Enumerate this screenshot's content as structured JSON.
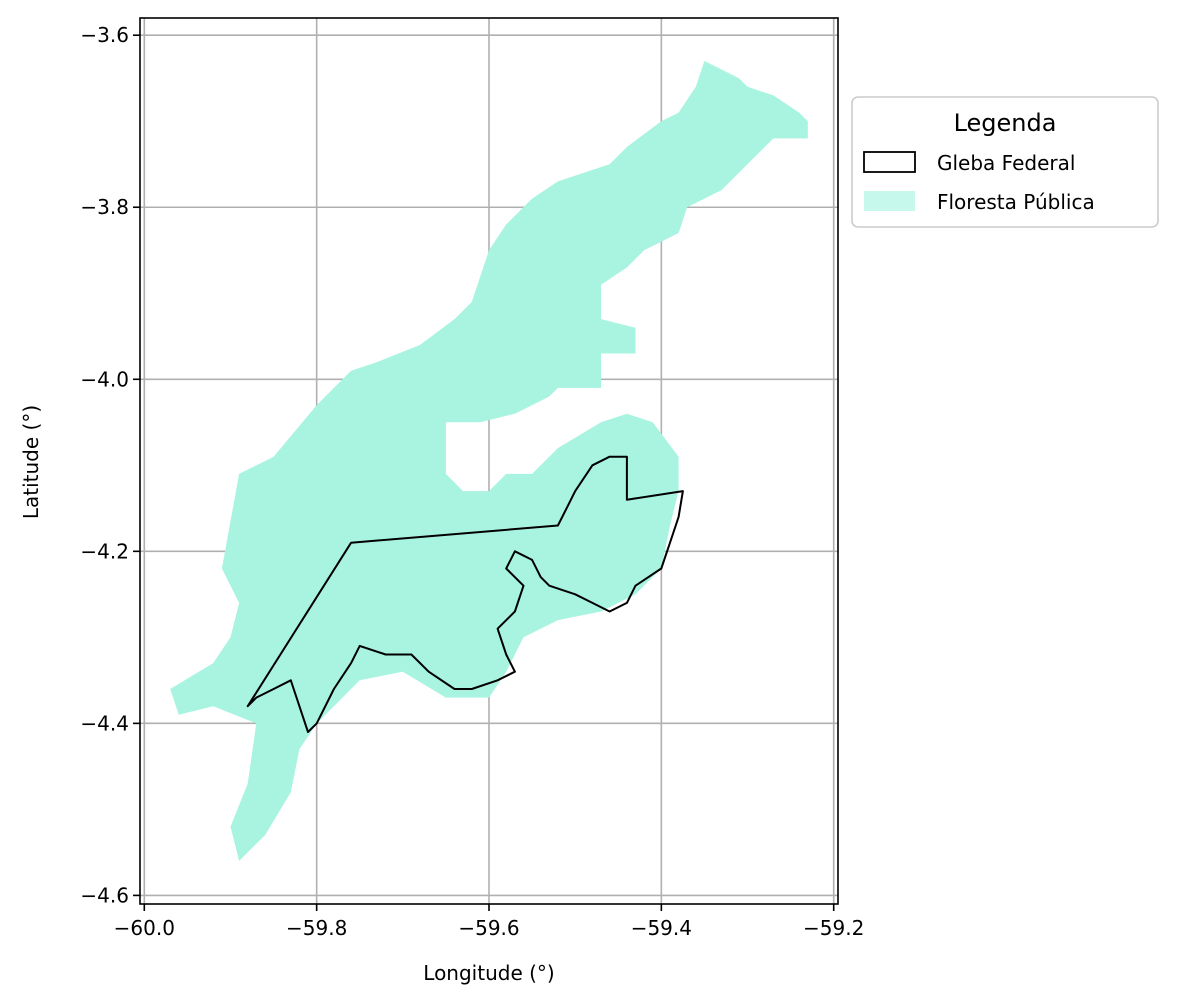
{
  "chart_data": {
    "type": "map",
    "xlabel": "Longitude (°)",
    "ylabel": "Latitude (°)",
    "xlim": [
      -60.005,
      -59.195
    ],
    "ylim": [
      -4.61,
      -3.58
    ],
    "xticks": [
      -60.0,
      -59.8,
      -59.6,
      -59.4,
      -59.2
    ],
    "xtick_labels": [
      "−60.0",
      "−59.8",
      "−59.6",
      "−59.4",
      "−59.2"
    ],
    "yticks": [
      -3.6,
      -3.8,
      -4.0,
      -4.2,
      -4.4,
      -4.6
    ],
    "ytick_labels": [
      "−3.6",
      "−3.8",
      "−4.0",
      "−4.2",
      "−4.4",
      "−4.6"
    ],
    "grid": true,
    "legend": {
      "title": "Legenda",
      "location": "outside-right-top",
      "entries": [
        {
          "label": "Gleba Federal",
          "style": "outline",
          "color": "#000000"
        },
        {
          "label": "Floresta Pública",
          "style": "fill",
          "color": "#a8f4e0"
        }
      ]
    },
    "floresta_publica": {
      "color": "#a8f4e0",
      "polygons": [
        [
          [
            -59.35,
            -3.63
          ],
          [
            -59.33,
            -3.64
          ],
          [
            -59.31,
            -3.65
          ],
          [
            -59.3,
            -3.66
          ],
          [
            -59.27,
            -3.67
          ],
          [
            -59.24,
            -3.69
          ],
          [
            -59.23,
            -3.7
          ],
          [
            -59.23,
            -3.72
          ],
          [
            -59.27,
            -3.72
          ],
          [
            -59.31,
            -3.76
          ],
          [
            -59.33,
            -3.78
          ],
          [
            -59.37,
            -3.8
          ],
          [
            -59.38,
            -3.83
          ],
          [
            -59.42,
            -3.85
          ],
          [
            -59.44,
            -3.87
          ],
          [
            -59.47,
            -3.89
          ],
          [
            -59.47,
            -3.93
          ],
          [
            -59.43,
            -3.94
          ],
          [
            -59.43,
            -3.97
          ],
          [
            -59.47,
            -3.97
          ],
          [
            -59.47,
            -4.01
          ],
          [
            -59.52,
            -4.01
          ],
          [
            -59.53,
            -4.02
          ],
          [
            -59.57,
            -4.04
          ],
          [
            -59.61,
            -4.05
          ],
          [
            -59.65,
            -4.05
          ],
          [
            -59.65,
            -4.11
          ],
          [
            -59.63,
            -4.13
          ],
          [
            -59.6,
            -4.13
          ],
          [
            -59.58,
            -4.11
          ],
          [
            -59.55,
            -4.11
          ],
          [
            -59.52,
            -4.08
          ],
          [
            -59.47,
            -4.05
          ],
          [
            -59.44,
            -4.04
          ],
          [
            -59.41,
            -4.05
          ],
          [
            -59.38,
            -4.09
          ],
          [
            -59.38,
            -4.13
          ],
          [
            -59.39,
            -4.17
          ],
          [
            -59.4,
            -4.22
          ],
          [
            -59.43,
            -4.25
          ],
          [
            -59.47,
            -4.27
          ],
          [
            -59.52,
            -4.28
          ],
          [
            -59.56,
            -4.3
          ],
          [
            -59.58,
            -4.34
          ],
          [
            -59.6,
            -4.37
          ],
          [
            -59.65,
            -4.37
          ],
          [
            -59.7,
            -4.34
          ],
          [
            -59.75,
            -4.35
          ],
          [
            -59.78,
            -4.38
          ],
          [
            -59.8,
            -4.4
          ],
          [
            -59.82,
            -4.43
          ],
          [
            -59.83,
            -4.48
          ],
          [
            -59.86,
            -4.53
          ],
          [
            -59.89,
            -4.56
          ],
          [
            -59.9,
            -4.52
          ],
          [
            -59.88,
            -4.47
          ],
          [
            -59.87,
            -4.4
          ],
          [
            -59.92,
            -4.38
          ],
          [
            -59.96,
            -4.39
          ],
          [
            -59.97,
            -4.36
          ],
          [
            -59.92,
            -4.33
          ],
          [
            -59.9,
            -4.3
          ],
          [
            -59.89,
            -4.26
          ],
          [
            -59.91,
            -4.22
          ],
          [
            -59.89,
            -4.11
          ],
          [
            -59.85,
            -4.09
          ],
          [
            -59.8,
            -4.03
          ],
          [
            -59.76,
            -3.99
          ],
          [
            -59.73,
            -3.98
          ],
          [
            -59.68,
            -3.96
          ],
          [
            -59.64,
            -3.93
          ],
          [
            -59.62,
            -3.91
          ],
          [
            -59.6,
            -3.85
          ],
          [
            -59.58,
            -3.82
          ],
          [
            -59.55,
            -3.79
          ],
          [
            -59.52,
            -3.77
          ],
          [
            -59.46,
            -3.75
          ],
          [
            -59.44,
            -3.73
          ],
          [
            -59.4,
            -3.7
          ],
          [
            -59.38,
            -3.69
          ],
          [
            -59.36,
            -3.66
          ]
        ]
      ]
    },
    "gleba_federal": {
      "color": "#000000",
      "polygons": [
        [
          [
            -59.76,
            -4.19
          ],
          [
            -59.52,
            -4.17
          ],
          [
            -59.51,
            -4.15
          ],
          [
            -59.5,
            -4.13
          ],
          [
            -59.48,
            -4.1
          ],
          [
            -59.46,
            -4.09
          ],
          [
            -59.44,
            -4.09
          ],
          [
            -59.44,
            -4.14
          ],
          [
            -59.375,
            -4.13
          ],
          [
            -59.38,
            -4.16
          ],
          [
            -59.39,
            -4.19
          ],
          [
            -59.4,
            -4.22
          ],
          [
            -59.43,
            -4.24
          ],
          [
            -59.44,
            -4.26
          ],
          [
            -59.46,
            -4.27
          ],
          [
            -59.48,
            -4.26
          ],
          [
            -59.5,
            -4.25
          ],
          [
            -59.53,
            -4.24
          ],
          [
            -59.54,
            -4.23
          ],
          [
            -59.55,
            -4.21
          ],
          [
            -59.57,
            -4.2
          ],
          [
            -59.58,
            -4.22
          ],
          [
            -59.56,
            -4.24
          ],
          [
            -59.57,
            -4.27
          ],
          [
            -59.59,
            -4.29
          ],
          [
            -59.58,
            -4.32
          ],
          [
            -59.57,
            -4.34
          ],
          [
            -59.59,
            -4.35
          ],
          [
            -59.62,
            -4.36
          ],
          [
            -59.64,
            -4.36
          ],
          [
            -59.67,
            -4.34
          ],
          [
            -59.69,
            -4.32
          ],
          [
            -59.72,
            -4.32
          ],
          [
            -59.75,
            -4.31
          ],
          [
            -59.76,
            -4.33
          ],
          [
            -59.78,
            -4.36
          ],
          [
            -59.8,
            -4.4
          ],
          [
            -59.81,
            -4.41
          ],
          [
            -59.82,
            -4.38
          ],
          [
            -59.83,
            -4.35
          ],
          [
            -59.85,
            -4.36
          ],
          [
            -59.87,
            -4.37
          ],
          [
            -59.88,
            -4.38
          ]
        ]
      ]
    }
  }
}
